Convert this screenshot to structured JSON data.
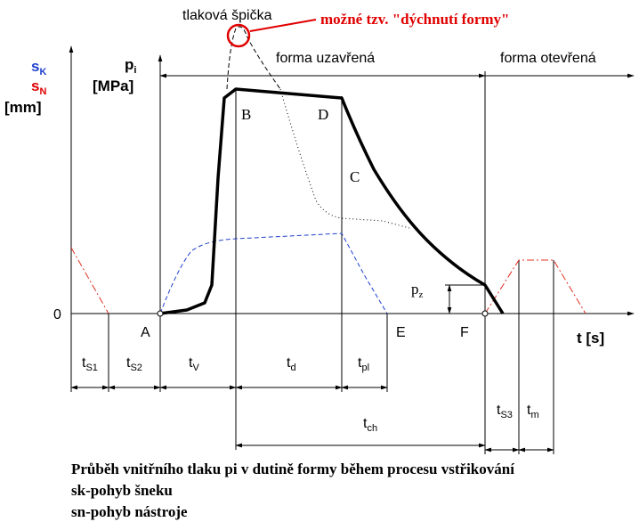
{
  "diagram": {
    "peak_label": "tlaková špička",
    "breathing_note": "možné tzv. \"dýchnutí formy\"",
    "phases": [
      "forma uzavřená",
      "forma otevřená"
    ],
    "axis_left": {
      "sk": {
        "base": "s",
        "sub": "K"
      },
      "sn": {
        "base": "s",
        "sub": "N"
      },
      "unit": "[mm]"
    },
    "axis_pressure": {
      "symbol": {
        "base": "p",
        "sub": "i"
      },
      "unit": "[MPa]"
    },
    "points": {
      "B": "B",
      "D": "D",
      "C": "C",
      "A": "A",
      "E": "E",
      "F": "F"
    },
    "zero": "0",
    "pz": {
      "base": "p",
      "sub": "z"
    },
    "time_axis": "t [s]",
    "intervals": [
      {
        "base": "t",
        "sub": "S1"
      },
      {
        "base": "t",
        "sub": "S2"
      },
      {
        "base": "t",
        "sub": "V"
      },
      {
        "base": "t",
        "sub": "d"
      },
      {
        "base": "t",
        "sub": "pl"
      },
      {
        "base": "t",
        "sub": "ch"
      },
      {
        "base": "t",
        "sub": "S3"
      },
      {
        "base": "t",
        "sub": "m"
      }
    ],
    "caption": [
      "Průběh vnitřního tlaku pi v dutině formy během procesu vstřikování",
      "sk-pohyb šneku",
      "sn-pohyb nástroje"
    ]
  }
}
